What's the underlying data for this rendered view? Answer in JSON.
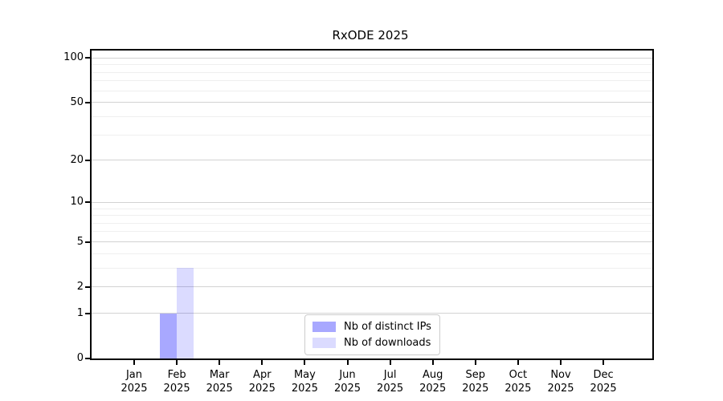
{
  "chart_data": {
    "type": "bar",
    "title": "RxODE 2025",
    "categories": [
      "Jan",
      "Feb",
      "Mar",
      "Apr",
      "May",
      "Jun",
      "Jul",
      "Aug",
      "Sep",
      "Oct",
      "Nov",
      "Dec"
    ],
    "category_year": "2025",
    "series": [
      {
        "name": "Nb of distinct IPs",
        "color": "rgba(0,0,255,0.34)",
        "values": [
          0,
          1,
          0,
          0,
          0,
          0,
          0,
          0,
          0,
          0,
          0,
          0
        ]
      },
      {
        "name": "Nb of downloads",
        "color": "rgba(0,0,255,0.14)",
        "values": [
          0,
          3,
          0,
          0,
          0,
          0,
          0,
          0,
          0,
          0,
          0,
          0
        ]
      }
    ],
    "xlabel": "",
    "ylabel": "",
    "y_scale": "log1p",
    "y_major_ticks": [
      0,
      1,
      2,
      5,
      10,
      20,
      50,
      100
    ],
    "y_minor_gridlines": [
      3,
      4,
      6,
      7,
      8,
      9,
      30,
      40,
      60,
      70,
      80,
      90
    ],
    "ylim": [
      0,
      112
    ],
    "grid": true,
    "legend_position": "lower center",
    "colors": {
      "major_grid": "#d2d2d2",
      "minor_grid": "#efefef",
      "axis": "#000000",
      "legend_border": "#cccccc"
    }
  }
}
